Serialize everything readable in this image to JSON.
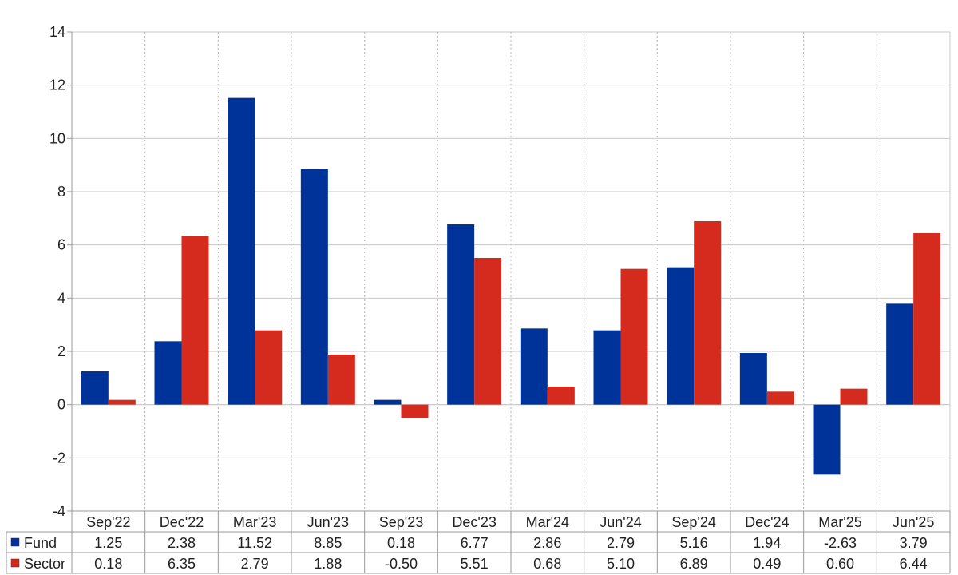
{
  "chart_data": {
    "type": "bar",
    "categories": [
      "Sep'22",
      "Dec'22",
      "Mar'23",
      "Jun'23",
      "Sep'23",
      "Dec'23",
      "Mar'24",
      "Jun'24",
      "Sep'24",
      "Dec'24",
      "Mar'25",
      "Jun'25"
    ],
    "series": [
      {
        "name": "Fund",
        "color": "#003399",
        "values": [
          1.25,
          2.38,
          11.52,
          8.85,
          0.18,
          6.77,
          2.86,
          2.79,
          5.16,
          1.94,
          -2.63,
          3.79
        ],
        "labels": [
          "1.25",
          "2.38",
          "11.52",
          "8.85",
          "0.18",
          "6.77",
          "2.86",
          "2.79",
          "5.16",
          "1.94",
          "-2.63",
          "3.79"
        ]
      },
      {
        "name": "Sector",
        "color": "#d52b1e",
        "values": [
          0.18,
          6.35,
          2.79,
          1.88,
          -0.5,
          5.51,
          0.68,
          5.1,
          6.89,
          0.49,
          0.6,
          6.44
        ],
        "labels": [
          "0.18",
          "6.35",
          "2.79",
          "1.88",
          "-0.50",
          "5.51",
          "0.68",
          "5.10",
          "6.89",
          "0.49",
          "0.60",
          "6.44"
        ]
      }
    ],
    "ylim": [
      -4,
      14
    ],
    "yticks": [
      "-4",
      "-2",
      "0",
      "2",
      "4",
      "6",
      "8",
      "10",
      "12",
      "14"
    ],
    "grid": true,
    "legend": "data-table-left",
    "negative_label_color": "#e8141b"
  }
}
